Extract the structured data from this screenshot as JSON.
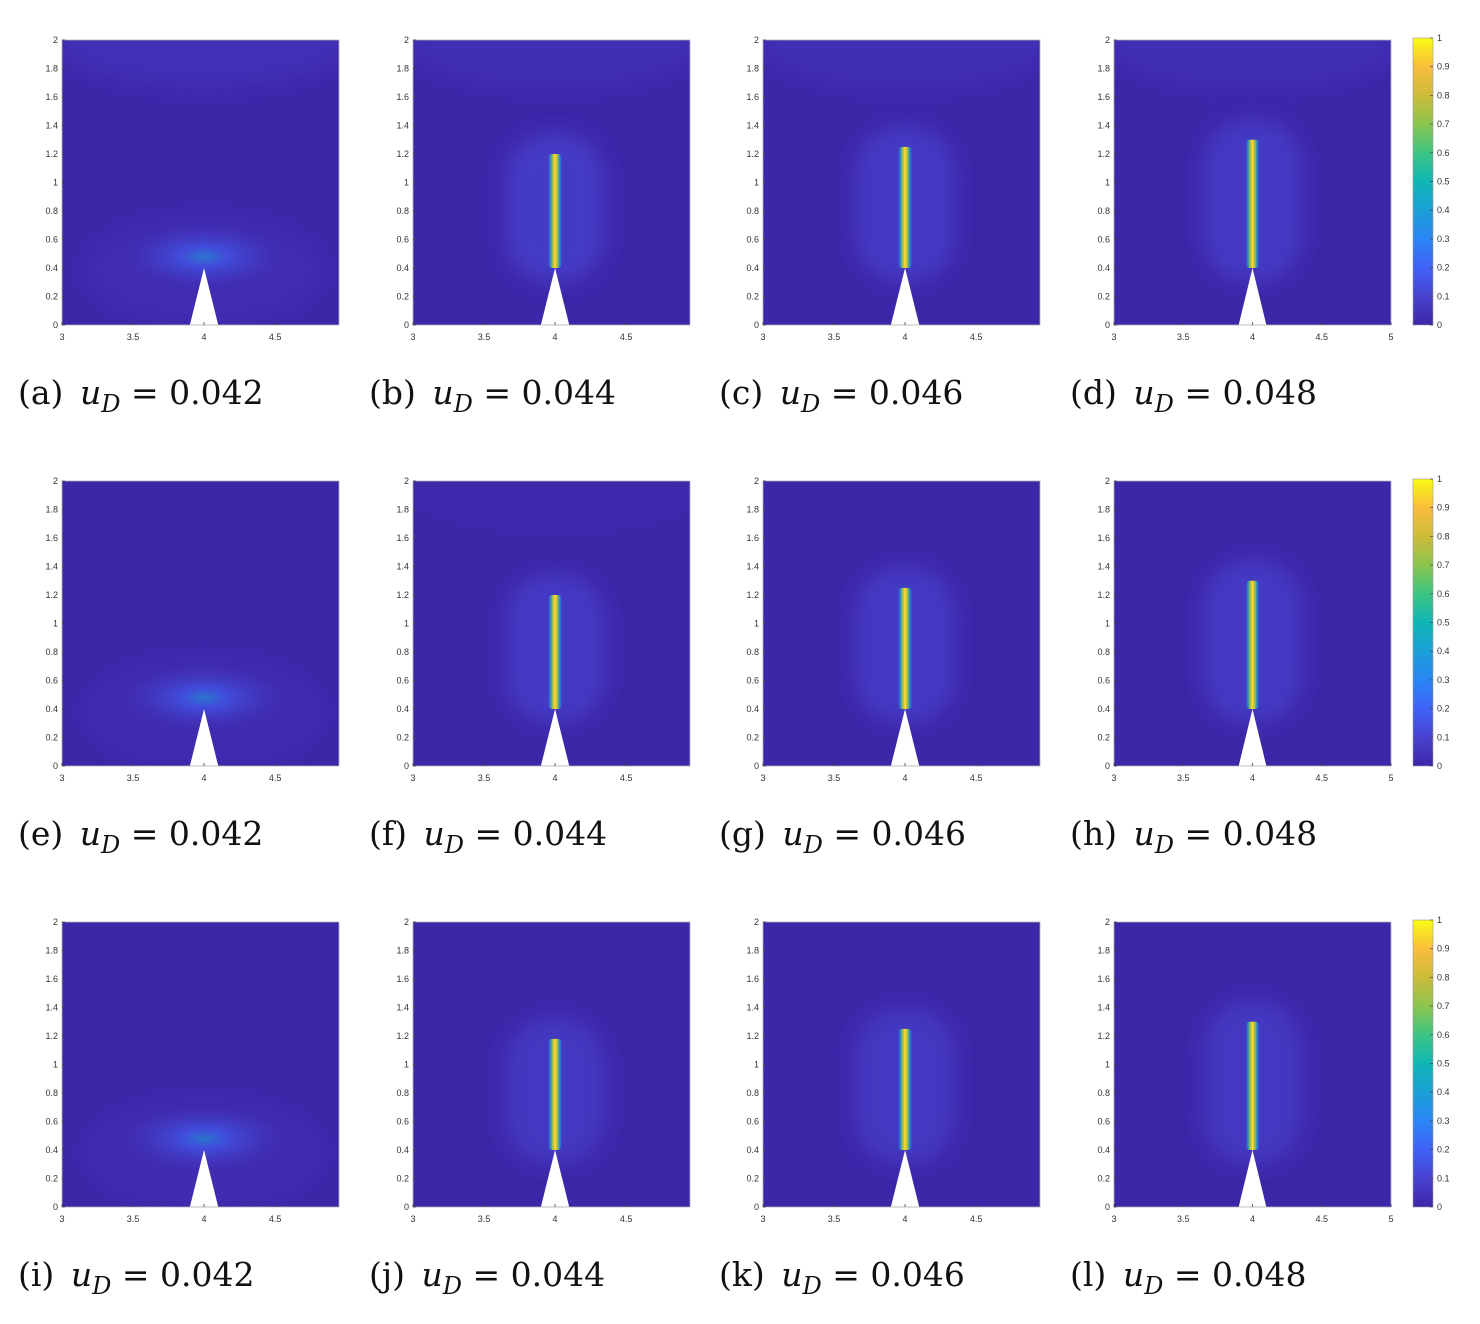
{
  "colormap": {
    "name": "parula",
    "stops": [
      "#3e26a8",
      "#4743cf",
      "#4062f7",
      "#2a86f5",
      "#1aa0d6",
      "#10b6b6",
      "#3cc583",
      "#8bc54e",
      "#cdbb3a",
      "#f9bd3c",
      "#f9fb14"
    ]
  },
  "chart_data": [
    {
      "label": "(a)",
      "var": "u",
      "sub": "D",
      "eq": "= 0.042",
      "type": "heatmap",
      "crack_length": 0.0,
      "halo": 0.45,
      "top_band": 0.35,
      "colorbar": false,
      "x_ticks": [
        "3",
        "3.5",
        "4",
        "4.5"
      ],
      "y_ticks": [
        "0",
        "0.2",
        "0.4",
        "0.6",
        "0.8",
        "1",
        "1.2",
        "1.4",
        "1.6",
        "1.8",
        "2"
      ],
      "xlim": [
        3,
        4.95
      ],
      "ylim": [
        0,
        2
      ]
    },
    {
      "label": "(b)",
      "var": "u",
      "sub": "D",
      "eq": "= 0.044",
      "type": "heatmap",
      "crack_length": 0.8,
      "halo": 0.4,
      "top_band": 0.3,
      "colorbar": false,
      "x_ticks": [
        "3",
        "3.5",
        "4",
        "4.5"
      ],
      "y_ticks": [
        "0",
        "0.2",
        "0.4",
        "0.6",
        "0.8",
        "1",
        "1.2",
        "1.4",
        "1.6",
        "1.8",
        "2"
      ],
      "xlim": [
        3,
        4.95
      ],
      "ylim": [
        0,
        2
      ]
    },
    {
      "label": "(c)",
      "var": "u",
      "sub": "D",
      "eq": "= 0.046",
      "type": "heatmap",
      "crack_length": 0.85,
      "halo": 0.35,
      "top_band": 0.3,
      "colorbar": false,
      "x_ticks": [
        "3",
        "3.5",
        "4",
        "4.5"
      ],
      "y_ticks": [
        "0",
        "0.2",
        "0.4",
        "0.6",
        "0.8",
        "1",
        "1.2",
        "1.4",
        "1.6",
        "1.8",
        "2"
      ],
      "xlim": [
        3,
        4.95
      ],
      "ylim": [
        0,
        2
      ]
    },
    {
      "label": "(d)",
      "var": "u",
      "sub": "D",
      "eq": "= 0.048",
      "type": "heatmap",
      "crack_length": 0.9,
      "halo": 0.35,
      "top_band": 0.3,
      "colorbar": true,
      "colorbar_ticks": [
        "0",
        "0.1",
        "0.2",
        "0.3",
        "0.4",
        "0.5",
        "0.6",
        "0.7",
        "0.8",
        "0.9",
        "1"
      ],
      "x_ticks": [
        "3",
        "3.5",
        "4",
        "4.5",
        "5"
      ],
      "y_ticks": [
        "0",
        "0.2",
        "0.4",
        "0.6",
        "0.8",
        "1",
        "1.2",
        "1.4",
        "1.6",
        "1.8",
        "2"
      ],
      "xlim": [
        3,
        5
      ],
      "ylim": [
        0,
        2
      ]
    },
    {
      "label": "(e)",
      "var": "u",
      "sub": "D",
      "eq": "= 0.042",
      "type": "heatmap",
      "crack_length": 0.0,
      "halo": 0.4,
      "top_band": 0.0,
      "colorbar": false,
      "x_ticks": [
        "3",
        "3.5",
        "4",
        "4.5"
      ],
      "y_ticks": [
        "0",
        "0.2",
        "0.4",
        "0.6",
        "0.8",
        "1",
        "1.2",
        "1.4",
        "1.6",
        "1.8",
        "2"
      ],
      "xlim": [
        3,
        4.95
      ],
      "ylim": [
        0,
        2
      ]
    },
    {
      "label": "(f)",
      "var": "u",
      "sub": "D",
      "eq": "= 0.044",
      "type": "heatmap",
      "crack_length": 0.8,
      "halo": 0.35,
      "top_band": 0.1,
      "colorbar": false,
      "x_ticks": [
        "3",
        "3.5",
        "4",
        "4.5"
      ],
      "y_ticks": [
        "0",
        "0.2",
        "0.4",
        "0.6",
        "0.8",
        "1",
        "1.2",
        "1.4",
        "1.6",
        "1.8",
        "2"
      ],
      "xlim": [
        3,
        4.95
      ],
      "ylim": [
        0,
        2
      ]
    },
    {
      "label": "(g)",
      "var": "u",
      "sub": "D",
      "eq": "= 0.046",
      "type": "heatmap",
      "crack_length": 0.85,
      "halo": 0.35,
      "top_band": 0.0,
      "colorbar": false,
      "x_ticks": [
        "3",
        "3.5",
        "4",
        "4.5"
      ],
      "y_ticks": [
        "0",
        "0.2",
        "0.4",
        "0.6",
        "0.8",
        "1",
        "1.2",
        "1.4",
        "1.6",
        "1.8",
        "2"
      ],
      "xlim": [
        3,
        4.95
      ],
      "ylim": [
        0,
        2
      ]
    },
    {
      "label": "(h)",
      "var": "u",
      "sub": "D",
      "eq": "= 0.048",
      "type": "heatmap",
      "crack_length": 0.9,
      "halo": 0.35,
      "top_band": 0.0,
      "colorbar": true,
      "colorbar_ticks": [
        "0",
        "0.1",
        "0.2",
        "0.3",
        "0.4",
        "0.5",
        "0.6",
        "0.7",
        "0.8",
        "0.9",
        "1"
      ],
      "x_ticks": [
        "3",
        "3.5",
        "4",
        "4.5",
        "5"
      ],
      "y_ticks": [
        "0",
        "0.2",
        "0.4",
        "0.6",
        "0.8",
        "1",
        "1.2",
        "1.4",
        "1.6",
        "1.8",
        "2"
      ],
      "xlim": [
        3,
        5
      ],
      "ylim": [
        0,
        2
      ]
    },
    {
      "label": "(i)",
      "var": "u",
      "sub": "D",
      "eq": "= 0.042",
      "type": "heatmap",
      "crack_length": 0.0,
      "halo": 0.4,
      "top_band": 0.0,
      "colorbar": false,
      "x_ticks": [
        "3",
        "3.5",
        "4",
        "4.5"
      ],
      "y_ticks": [
        "0",
        "0.2",
        "0.4",
        "0.6",
        "0.8",
        "1",
        "1.2",
        "1.4",
        "1.6",
        "1.8",
        "2"
      ],
      "xlim": [
        3,
        4.95
      ],
      "ylim": [
        0,
        2
      ]
    },
    {
      "label": "(j)",
      "var": "u",
      "sub": "D",
      "eq": "= 0.044",
      "type": "heatmap",
      "crack_length": 0.78,
      "halo": 0.3,
      "top_band": 0.0,
      "colorbar": false,
      "x_ticks": [
        "3",
        "3.5",
        "4",
        "4.5"
      ],
      "y_ticks": [
        "0",
        "0.2",
        "0.4",
        "0.6",
        "0.8",
        "1",
        "1.2",
        "1.4",
        "1.6",
        "1.8",
        "2"
      ],
      "xlim": [
        3,
        4.95
      ],
      "ylim": [
        0,
        2
      ]
    },
    {
      "label": "(k)",
      "var": "u",
      "sub": "D",
      "eq": "= 0.046",
      "type": "heatmap",
      "crack_length": 0.85,
      "halo": 0.3,
      "top_band": 0.0,
      "colorbar": false,
      "x_ticks": [
        "3",
        "3.5",
        "4",
        "4.5"
      ],
      "y_ticks": [
        "0",
        "0.2",
        "0.4",
        "0.6",
        "0.8",
        "1",
        "1.2",
        "1.4",
        "1.6",
        "1.8",
        "2"
      ],
      "xlim": [
        3,
        4.95
      ],
      "ylim": [
        0,
        2
      ]
    },
    {
      "label": "(l)",
      "var": "u",
      "sub": "D",
      "eq": "= 0.048",
      "type": "heatmap",
      "crack_length": 0.9,
      "halo": 0.3,
      "top_band": 0.0,
      "colorbar": true,
      "colorbar_ticks": [
        "0",
        "0.1",
        "0.2",
        "0.3",
        "0.4",
        "0.5",
        "0.6",
        "0.7",
        "0.8",
        "0.9",
        "1"
      ],
      "x_ticks": [
        "3",
        "3.5",
        "4",
        "4.5",
        "5"
      ],
      "y_ticks": [
        "0",
        "0.2",
        "0.4",
        "0.6",
        "0.8",
        "1",
        "1.2",
        "1.4",
        "1.6",
        "1.8",
        "2"
      ],
      "xlim": [
        3,
        5
      ],
      "ylim": [
        0,
        2
      ]
    }
  ]
}
